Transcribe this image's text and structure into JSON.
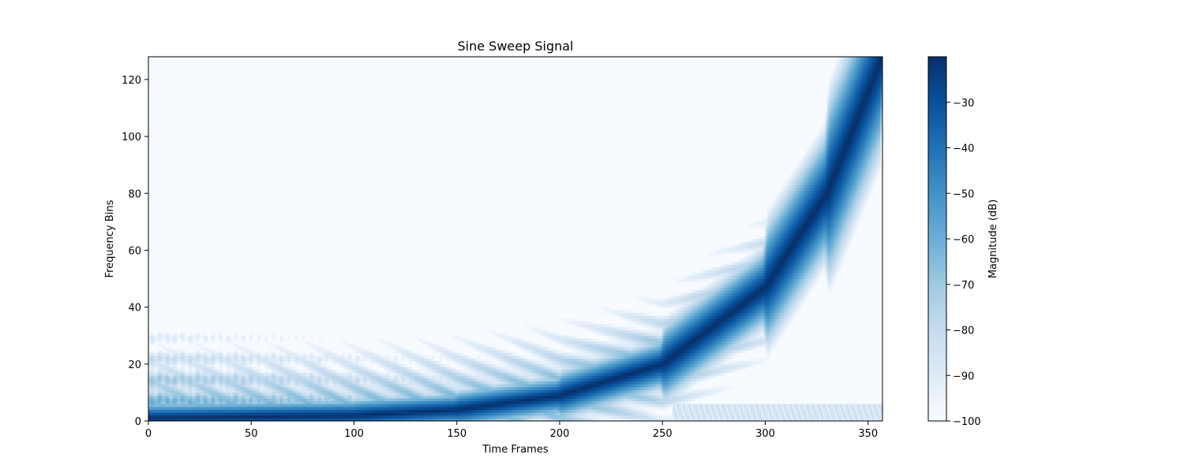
{
  "chart_data": {
    "type": "heatmap",
    "title": "Sine Sweep Signal",
    "xlabel": "Time Frames",
    "ylabel": "Frequency Bins",
    "xlim": [
      0,
      357
    ],
    "ylim": [
      0,
      128
    ],
    "x_ticks": [
      0,
      50,
      100,
      150,
      200,
      250,
      300,
      350
    ],
    "y_ticks": [
      0,
      20,
      40,
      60,
      80,
      100,
      120
    ],
    "colormap": "Blues",
    "colormap_stops": [
      "#f7fbff",
      "#deebf7",
      "#c6dbef",
      "#9ecae1",
      "#6baed6",
      "#4292c6",
      "#2171b5",
      "#08519c",
      "#08306b"
    ],
    "colorbar": {
      "label": "Magnitude (dB)",
      "range": [
        -100,
        -20
      ],
      "ticks": [
        -30,
        -40,
        -50,
        -60,
        -70,
        -80,
        -90,
        -100
      ],
      "tick_labels": [
        "−30",
        "−40",
        "−50",
        "−60",
        "−70",
        "−80",
        "−90",
        "−100"
      ]
    },
    "sweep": {
      "description_points": [
        [
          0,
          1
        ],
        [
          50,
          1.5
        ],
        [
          100,
          2
        ],
        [
          150,
          4
        ],
        [
          200,
          9
        ],
        [
          250,
          20
        ],
        [
          300,
          47
        ],
        [
          330,
          80
        ],
        [
          357,
          128
        ]
      ],
      "peak_db": -20,
      "floor_db": -100
    }
  }
}
